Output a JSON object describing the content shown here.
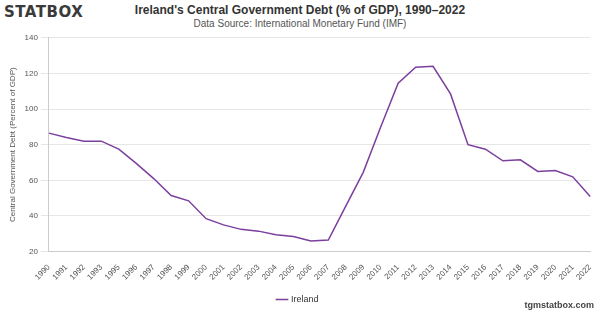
{
  "chart_data": {
    "type": "line",
    "title": "Ireland's Central Government Debt (% of GDP), 1990–2022",
    "subtitle": "Data Source: International Monetary Fund (IMF)",
    "y_label": "Central Government Debt (Percent of GDP)",
    "categories": [
      "1990",
      "1991",
      "1992",
      "1993",
      "1995",
      "1996",
      "1997",
      "1998",
      "1999",
      "2000",
      "2001",
      "2002",
      "2003",
      "2004",
      "2005",
      "2006",
      "2007",
      "2008",
      "2009",
      "2010",
      "2011",
      "2012",
      "2013",
      "2014",
      "2015",
      "2016",
      "2017",
      "2018",
      "2019",
      "2020",
      "2021",
      "2022"
    ],
    "series": [
      {
        "name": "Ireland",
        "color": "#7b3f9e",
        "marker": "none",
        "line_style": "solid",
        "values": [
          86.5,
          84,
          82,
          82,
          77.5,
          69.5,
          61,
          51.5,
          48.5,
          38.5,
          35,
          32.5,
          31.5,
          29.5,
          28.5,
          26,
          26.5,
          45.5,
          64.5,
          90,
          114.5,
          123.5,
          124,
          108.5,
          80,
          77.5,
          71,
          71.5,
          65,
          65.5,
          62,
          51
        ]
      }
    ],
    "ylim": [
      20,
      140
    ],
    "yticks": [
      20,
      40,
      60,
      80,
      100,
      120,
      140
    ],
    "grid": true,
    "legend": "bottom"
  },
  "branding": {
    "logo": "STATBOX",
    "website": "tgmstatbox.com"
  }
}
